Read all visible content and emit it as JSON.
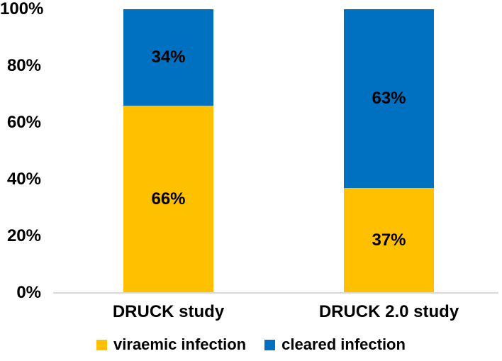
{
  "chart_data": {
    "type": "bar",
    "stacked": true,
    "orientation": "vertical",
    "categories": [
      "DRUCK study",
      "DRUCK 2.0 study"
    ],
    "series": [
      {
        "name": "viraemic infection",
        "color": "#FFC000",
        "values": [
          66,
          37
        ],
        "labels": [
          "66%",
          "37%"
        ]
      },
      {
        "name": "cleared infection",
        "color": "#0070C0",
        "values": [
          34,
          63
        ],
        "labels": [
          "34%",
          "63%"
        ]
      }
    ],
    "yticks": [
      "0%",
      "20%",
      "40%",
      "60%",
      "80%",
      "100%"
    ],
    "ytick_values": [
      0,
      20,
      40,
      60,
      80,
      100
    ],
    "ylim": [
      0,
      100
    ],
    "title": "",
    "xlabel": "",
    "ylabel": "",
    "grid": false,
    "legend_position": "bottom",
    "axis_line_color": "#D9D9D9",
    "text_color": "#000000",
    "background_color": "#FFFFFF"
  }
}
